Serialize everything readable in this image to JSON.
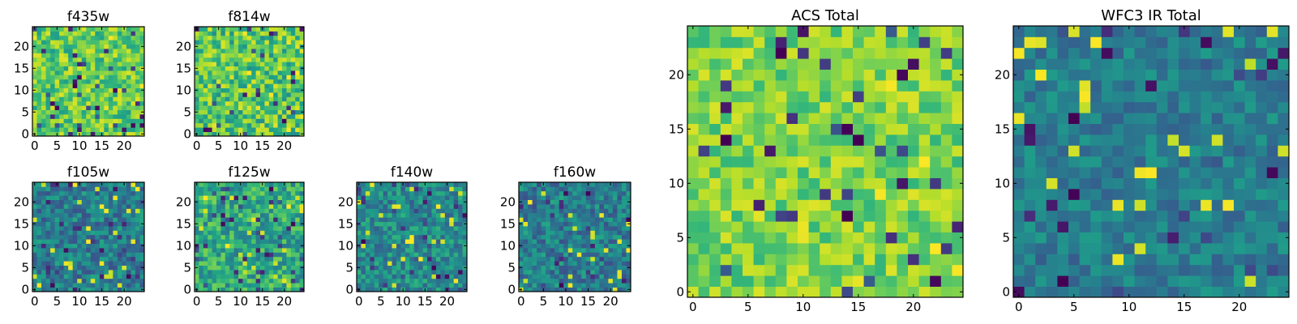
{
  "figure": {
    "colormap": "viridis",
    "colormap_stops": [
      "#440154",
      "#482878",
      "#3e4989",
      "#31688e",
      "#26828e",
      "#1f9e89",
      "#35b779",
      "#6ece58",
      "#b5de2b",
      "#fde725"
    ]
  },
  "chart_data": [
    {
      "type": "heatmap",
      "title": "f435w",
      "grid_size": [
        25,
        25
      ],
      "xticks": [
        0,
        5,
        10,
        15,
        20
      ],
      "yticks": [
        0,
        5,
        10,
        15,
        20
      ],
      "value_range": [
        0,
        1
      ],
      "dominant_values": [
        0.55,
        0.95
      ],
      "highlights": []
    },
    {
      "type": "heatmap",
      "title": "f814w",
      "grid_size": [
        25,
        25
      ],
      "xticks": [
        0,
        5,
        10,
        15,
        20
      ],
      "yticks": [
        0,
        5,
        10,
        15,
        20
      ],
      "value_range": [
        0,
        1
      ],
      "dominant_values": [
        0.5,
        0.95
      ],
      "highlights": []
    },
    {
      "type": "heatmap",
      "title": "f105w",
      "grid_size": [
        25,
        25
      ],
      "xticks": [
        0,
        5,
        10,
        15,
        20
      ],
      "yticks": [
        0,
        5,
        10,
        15,
        20
      ],
      "value_range": [
        0,
        1
      ],
      "dominant_values": [
        0.25,
        0.6
      ],
      "highlights": [
        {
          "x": 12,
          "y": 11,
          "value": 1.0
        },
        {
          "x": 20,
          "y": 5,
          "value": 0.95
        }
      ]
    },
    {
      "type": "heatmap",
      "title": "f125w",
      "grid_size": [
        25,
        25
      ],
      "xticks": [
        0,
        5,
        10,
        15,
        20
      ],
      "yticks": [
        0,
        5,
        10,
        15,
        20
      ],
      "value_range": [
        0,
        1
      ],
      "dominant_values": [
        0.4,
        0.8
      ],
      "highlights": [
        {
          "x": 2,
          "y": 21,
          "value": 1.0
        },
        {
          "x": 1,
          "y": 14,
          "value": 0.95
        },
        {
          "x": 21,
          "y": 1,
          "value": 0.9
        }
      ]
    },
    {
      "type": "heatmap",
      "title": "f140w",
      "grid_size": [
        25,
        25
      ],
      "xticks": [
        0,
        5,
        10,
        15,
        20
      ],
      "yticks": [
        0,
        5,
        10,
        15,
        20
      ],
      "value_range": [
        0,
        1
      ],
      "dominant_values": [
        0.3,
        0.65
      ],
      "highlights": [
        {
          "x": 12,
          "y": 11,
          "value": 1.0
        }
      ]
    },
    {
      "type": "heatmap",
      "title": "f160w",
      "grid_size": [
        25,
        25
      ],
      "xticks": [
        0,
        5,
        10,
        15,
        20
      ],
      "yticks": [
        0,
        5,
        10,
        15,
        20
      ],
      "value_range": [
        0,
        1
      ],
      "dominant_values": [
        0.25,
        0.6
      ],
      "highlights": [
        {
          "x": 2,
          "y": 20,
          "value": 1.0
        },
        {
          "x": 21,
          "y": 0,
          "value": 0.95
        }
      ]
    },
    {
      "type": "heatmap",
      "title": "ACS Total",
      "grid_size": [
        25,
        25
      ],
      "xticks": [
        0,
        5,
        10,
        15,
        20
      ],
      "yticks": [
        0,
        5,
        10,
        15,
        20
      ],
      "value_range": [
        0,
        1
      ],
      "dominant_values": [
        0.65,
        0.95
      ],
      "highlights": [
        {
          "x": 3,
          "y": 14,
          "value": 0.0
        },
        {
          "x": 8,
          "y": 22,
          "value": 0.0
        },
        {
          "x": 14,
          "y": 7,
          "value": 0.0
        }
      ]
    },
    {
      "type": "heatmap",
      "title": "WFC3 IR Total",
      "grid_size": [
        25,
        25
      ],
      "xticks": [
        0,
        5,
        10,
        15,
        20
      ],
      "yticks": [
        0,
        5,
        10,
        15,
        20
      ],
      "value_range": [
        0,
        1
      ],
      "dominant_values": [
        0.3,
        0.55
      ],
      "highlights": [
        {
          "x": 2,
          "y": 20,
          "value": 1.0
        },
        {
          "x": 12,
          "y": 11,
          "value": 1.0
        },
        {
          "x": 5,
          "y": 16,
          "value": 0.0
        },
        {
          "x": 4,
          "y": 1,
          "value": 0.0
        }
      ]
    }
  ]
}
